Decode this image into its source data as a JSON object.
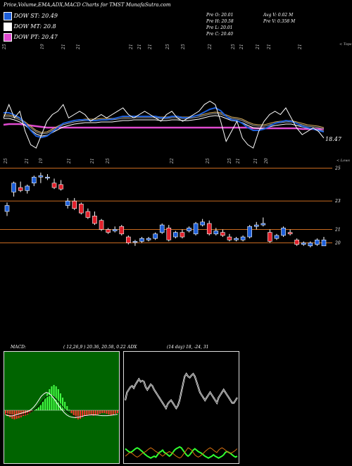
{
  "header": {
    "title": "Price,Volume,EMA,ADX,MACD Charts for TMST MunafaSutra.com"
  },
  "legend": [
    {
      "label": "DOW ST: 20.49",
      "color": "#1e5fd8"
    },
    {
      "label": "DOW MT: 20.8",
      "color": "#ffffff"
    },
    {
      "label": "DOW PT: 20.47",
      "color": "#e04ad0"
    }
  ],
  "stats": {
    "pre_o": "Pre   O: 20.01",
    "pre_h": "Pre   H: 20.58",
    "pre_l": "Pre   L: 20.01",
    "pre_c": "Pre   C: 20.40",
    "avg_v": "Avg V: 0.02   M",
    "pre_v": "Pre   V: 0.358 M"
  },
  "colors": {
    "bull": "#1e5fd8",
    "bear": "#e0202a",
    "ema_short": "#1e5fd8",
    "ema_mid": "#ffffff",
    "ema_long": "#e04ad0",
    "price_line": "#ffffff",
    "ma_yellow": "#d8b060",
    "ma_gray": "#a0a0a0",
    "level_line": "#c86a20",
    "macd_bg": "#006400",
    "adx_bg": "#000000"
  },
  "chart_data": {
    "type": "candlestick",
    "upper_top_label": "< Tops",
    "upper_value_label": "18.47",
    "lower_axis_label": "< Lows",
    "top_date_labels": [
      "25",
      "19",
      "21",
      "21",
      "21",
      "21",
      "21",
      "25",
      "25",
      "22",
      "25",
      "21",
      "21",
      "21",
      "21"
    ],
    "middle_date_labels": [
      "25",
      "21",
      "19",
      "21",
      "21",
      "25",
      "22",
      "25",
      "25",
      "21",
      "21",
      "20"
    ],
    "price_levels": [
      {
        "label": "25",
        "value": 25.2
      },
      {
        "label": "23",
        "value": 23.0
      },
      {
        "label": "21",
        "value": 21.1
      },
      {
        "label": "20",
        "value": 20.2
      }
    ],
    "price_ylim": [
      19.0,
      25.6
    ],
    "candles": [
      {
        "o": 22.3,
        "h": 22.9,
        "l": 22.0,
        "c": 22.7
      },
      {
        "o": 23.6,
        "h": 24.3,
        "l": 23.3,
        "c": 24.2
      },
      {
        "o": 23.9,
        "h": 24.3,
        "l": 23.6,
        "c": 23.7
      },
      {
        "o": 23.7,
        "h": 24.1,
        "l": 23.5,
        "c": 24.0
      },
      {
        "o": 24.2,
        "h": 24.7,
        "l": 24.0,
        "c": 24.6
      },
      {
        "o": 24.6,
        "h": 24.9,
        "l": 24.2,
        "c": 24.7
      },
      {
        "o": 24.6,
        "h": 24.8,
        "l": 24.4,
        "c": 24.6
      },
      {
        "o": 24.2,
        "h": 24.5,
        "l": 23.8,
        "c": 23.9
      },
      {
        "o": 24.1,
        "h": 24.4,
        "l": 23.7,
        "c": 23.8
      },
      {
        "o": 22.7,
        "h": 23.2,
        "l": 22.5,
        "c": 23.0
      },
      {
        "o": 23.0,
        "h": 23.2,
        "l": 22.4,
        "c": 22.5
      },
      {
        "o": 22.8,
        "h": 22.9,
        "l": 22.1,
        "c": 22.2
      },
      {
        "o": 22.3,
        "h": 22.5,
        "l": 21.8,
        "c": 21.9
      },
      {
        "o": 22.0,
        "h": 22.3,
        "l": 21.4,
        "c": 21.5
      },
      {
        "o": 21.7,
        "h": 21.8,
        "l": 21.0,
        "c": 21.1
      },
      {
        "o": 21.1,
        "h": 21.2,
        "l": 20.8,
        "c": 20.9
      },
      {
        "o": 21.0,
        "h": 21.3,
        "l": 20.9,
        "c": 21.1
      },
      {
        "o": 21.3,
        "h": 21.4,
        "l": 20.7,
        "c": 20.8
      },
      {
        "o": 20.6,
        "h": 20.7,
        "l": 20.1,
        "c": 20.2
      },
      {
        "o": 20.3,
        "h": 20.4,
        "l": 20.0,
        "c": 20.3
      },
      {
        "o": 20.3,
        "h": 20.6,
        "l": 20.2,
        "c": 20.5
      },
      {
        "o": 20.4,
        "h": 20.6,
        "l": 20.3,
        "c": 20.5
      },
      {
        "o": 20.5,
        "h": 20.9,
        "l": 20.4,
        "c": 20.8
      },
      {
        "o": 20.9,
        "h": 21.5,
        "l": 20.8,
        "c": 21.4
      },
      {
        "o": 21.2,
        "h": 21.4,
        "l": 20.3,
        "c": 20.4
      },
      {
        "o": 20.6,
        "h": 21.0,
        "l": 20.5,
        "c": 20.9
      },
      {
        "o": 20.9,
        "h": 21.1,
        "l": 20.5,
        "c": 20.6
      },
      {
        "o": 21.0,
        "h": 21.3,
        "l": 20.9,
        "c": 21.2
      },
      {
        "o": 20.8,
        "h": 21.6,
        "l": 20.7,
        "c": 21.5
      },
      {
        "o": 21.4,
        "h": 21.8,
        "l": 21.3,
        "c": 21.6
      },
      {
        "o": 21.5,
        "h": 21.7,
        "l": 20.7,
        "c": 20.8
      },
      {
        "o": 20.8,
        "h": 21.2,
        "l": 20.7,
        "c": 21.0
      },
      {
        "o": 20.9,
        "h": 21.1,
        "l": 20.6,
        "c": 20.7
      },
      {
        "o": 20.6,
        "h": 20.8,
        "l": 20.3,
        "c": 20.4
      },
      {
        "o": 20.4,
        "h": 20.6,
        "l": 20.3,
        "c": 20.5
      },
      {
        "o": 20.4,
        "h": 20.7,
        "l": 20.3,
        "c": 20.6
      },
      {
        "o": 20.6,
        "h": 21.4,
        "l": 20.5,
        "c": 21.3
      },
      {
        "o": 21.3,
        "h": 21.6,
        "l": 21.1,
        "c": 21.4
      },
      {
        "o": 21.4,
        "h": 21.9,
        "l": 21.3,
        "c": 21.5
      },
      {
        "o": 20.9,
        "h": 21.1,
        "l": 20.2,
        "c": 20.3
      },
      {
        "o": 20.5,
        "h": 20.8,
        "l": 20.4,
        "c": 20.7
      },
      {
        "o": 20.7,
        "h": 21.3,
        "l": 20.6,
        "c": 21.2
      },
      {
        "o": 20.9,
        "h": 21.1,
        "l": 20.7,
        "c": 20.8
      },
      {
        "o": 20.4,
        "h": 20.5,
        "l": 20.0,
        "c": 20.1
      },
      {
        "o": 20.1,
        "h": 20.3,
        "l": 20.0,
        "c": 20.2
      },
      {
        "o": 20.0,
        "h": 20.3,
        "l": 19.9,
        "c": 20.2
      },
      {
        "o": 20.1,
        "h": 20.5,
        "l": 20.0,
        "c": 20.4
      },
      {
        "o": 20.0,
        "h": 20.6,
        "l": 20.0,
        "c": 20.4
      }
    ],
    "upper_lines": {
      "price": [
        0.55,
        0.35,
        0.55,
        0.45,
        0.75,
        0.95,
        1.0,
        0.8,
        0.6,
        0.5,
        0.45,
        0.35,
        0.55,
        0.5,
        0.45,
        0.5,
        0.6,
        0.55,
        0.5,
        0.55,
        0.5,
        0.45,
        0.4,
        0.5,
        0.55,
        0.5,
        0.45,
        0.5,
        0.55,
        0.6,
        0.5,
        0.45,
        0.55,
        0.6,
        0.55,
        0.5,
        0.45,
        0.35,
        0.3,
        0.35,
        0.6,
        0.9,
        0.75,
        0.6,
        0.85,
        0.95,
        1.0,
        0.75,
        0.6,
        0.5,
        0.45,
        0.5,
        0.4,
        0.55,
        0.7,
        0.8,
        0.75,
        0.7,
        0.75,
        0.85
      ],
      "ema_short": [
        0.45,
        0.45,
        0.48,
        0.52,
        0.6,
        0.7,
        0.78,
        0.8,
        0.78,
        0.72,
        0.66,
        0.6,
        0.58,
        0.56,
        0.55,
        0.55,
        0.56,
        0.56,
        0.55,
        0.55,
        0.54,
        0.52,
        0.5,
        0.5,
        0.5,
        0.5,
        0.5,
        0.5,
        0.5,
        0.52,
        0.52,
        0.5,
        0.5,
        0.52,
        0.52,
        0.5,
        0.48,
        0.44,
        0.4,
        0.38,
        0.42,
        0.5,
        0.55,
        0.56,
        0.6,
        0.66,
        0.7,
        0.7,
        0.68,
        0.64,
        0.6,
        0.58,
        0.56,
        0.57,
        0.6,
        0.64,
        0.66,
        0.68,
        0.7,
        0.72
      ],
      "ema_mid": [
        0.5,
        0.5,
        0.52,
        0.55,
        0.6,
        0.66,
        0.72,
        0.75,
        0.74,
        0.7,
        0.66,
        0.62,
        0.6,
        0.58,
        0.57,
        0.56,
        0.56,
        0.56,
        0.55,
        0.55,
        0.55,
        0.54,
        0.53,
        0.53,
        0.52,
        0.52,
        0.52,
        0.52,
        0.52,
        0.53,
        0.53,
        0.52,
        0.52,
        0.53,
        0.53,
        0.52,
        0.51,
        0.49,
        0.47,
        0.46,
        0.47,
        0.5,
        0.53,
        0.54,
        0.56,
        0.6,
        0.63,
        0.64,
        0.64,
        0.62,
        0.6,
        0.59,
        0.58,
        0.58,
        0.6,
        0.62,
        0.64,
        0.65,
        0.66,
        0.68
      ],
      "ema_long": [
        0.62,
        0.61,
        0.61,
        0.61,
        0.62,
        0.63,
        0.64,
        0.65,
        0.66,
        0.66,
        0.66,
        0.66,
        0.66,
        0.66,
        0.66,
        0.66,
        0.66,
        0.66,
        0.66,
        0.66,
        0.66,
        0.66,
        0.66,
        0.66,
        0.66,
        0.66,
        0.66,
        0.66,
        0.66,
        0.66,
        0.66,
        0.66,
        0.66,
        0.66,
        0.66,
        0.66,
        0.66,
        0.66,
        0.66,
        0.66,
        0.66,
        0.66,
        0.66,
        0.66,
        0.66,
        0.66,
        0.67,
        0.67,
        0.67,
        0.67,
        0.67,
        0.67,
        0.67,
        0.67,
        0.67,
        0.68,
        0.68,
        0.68,
        0.68,
        0.68
      ]
    },
    "macd": {
      "label": "MACD:",
      "params": "( 12,26,9 ) 20.36,  20.58,  0.22",
      "histogram": [
        -0.15,
        -0.2,
        -0.25,
        -0.3,
        -0.32,
        -0.3,
        -0.28,
        -0.25,
        -0.2,
        -0.18,
        -0.15,
        -0.1,
        -0.05,
        0.02,
        0.05,
        0.1,
        0.18,
        0.3,
        0.45,
        0.6,
        0.75,
        0.85,
        0.9,
        0.85,
        0.75,
        0.6,
        0.45,
        0.3,
        0.15,
        0.02,
        -0.1,
        -0.2,
        -0.28,
        -0.32,
        -0.3,
        -0.25,
        -0.2,
        -0.18,
        -0.15,
        -0.18,
        -0.2,
        -0.18,
        -0.15,
        -0.12,
        -0.1,
        -0.1,
        -0.12,
        -0.15,
        -0.18,
        -0.15,
        -0.12,
        -0.1
      ],
      "macd_line": [
        -0.25,
        -0.3,
        -0.32,
        -0.3,
        -0.25,
        -0.2,
        -0.15,
        -0.1,
        -0.05,
        0.0,
        0.1,
        0.25,
        0.45,
        0.7,
        0.95,
        1.1,
        1.2,
        1.15,
        1.0,
        0.8,
        0.55,
        0.3,
        0.1,
        -0.1,
        -0.25,
        -0.35,
        -0.4,
        -0.42,
        -0.4,
        -0.38,
        -0.35,
        -0.3,
        -0.28,
        -0.26,
        -0.25,
        -0.25,
        -0.26,
        -0.28,
        -0.3,
        -0.3,
        -0.3,
        -0.28,
        -0.26,
        -0.24,
        -0.22
      ],
      "signal_line": [
        -0.15,
        -0.2,
        -0.25,
        -0.27,
        -0.28,
        -0.27,
        -0.25,
        -0.22,
        -0.18,
        -0.12,
        -0.05,
        0.05,
        0.18,
        0.35,
        0.55,
        0.75,
        0.9,
        1.0,
        1.0,
        0.9,
        0.75,
        0.55,
        0.35,
        0.15,
        -0.02,
        -0.15,
        -0.25,
        -0.32,
        -0.36,
        -0.37,
        -0.36,
        -0.34,
        -0.31,
        -0.29,
        -0.27,
        -0.26,
        -0.26,
        -0.27,
        -0.28,
        -0.29,
        -0.29,
        -0.28,
        -0.27,
        -0.25,
        -0.23
      ]
    },
    "adx": {
      "label": "ADX",
      "params": "(14 day) 18,  -24,  31",
      "adx_line": [
        0.35,
        0.5,
        0.55,
        0.6,
        0.62,
        0.58,
        0.65,
        0.7,
        0.75,
        0.7,
        0.72,
        0.7,
        0.6,
        0.55,
        0.6,
        0.65,
        0.62,
        0.55,
        0.5,
        0.45,
        0.4,
        0.35,
        0.3,
        0.25,
        0.2,
        0.28,
        0.32,
        0.35,
        0.3,
        0.25,
        0.2,
        0.25,
        0.35,
        0.5,
        0.65,
        0.8,
        0.85,
        0.8,
        0.78,
        0.82,
        0.85,
        0.8,
        0.7,
        0.6,
        0.5,
        0.45,
        0.4,
        0.35,
        0.4,
        0.45,
        0.5,
        0.45,
        0.4,
        0.35,
        0.3,
        0.4,
        0.45,
        0.5,
        0.55,
        0.5,
        0.45,
        0.4,
        0.35,
        0.3,
        0.3,
        0.35,
        0.4
      ],
      "plus_di": [
        0.28,
        0.25,
        0.22,
        0.2,
        0.22,
        0.25,
        0.28,
        0.3,
        0.28,
        0.25,
        0.22,
        0.18,
        0.15,
        0.12,
        0.1,
        0.08,
        0.1,
        0.12,
        0.1,
        0.15,
        0.2,
        0.22,
        0.25,
        0.2,
        0.18,
        0.15,
        0.12,
        0.15,
        0.2,
        0.25,
        0.28,
        0.3,
        0.32,
        0.3,
        0.25,
        0.2,
        0.15,
        0.12,
        0.15,
        0.2,
        0.25,
        0.28,
        0.25,
        0.22,
        0.2,
        0.18,
        0.15,
        0.12,
        0.1,
        0.08,
        0.1,
        0.12,
        0.15,
        0.12,
        0.1,
        0.08,
        0.1,
        0.12,
        0.15,
        0.2,
        0.22,
        0.2,
        0.18,
        0.15,
        0.12,
        0.1,
        0.12
      ],
      "minus_di": [
        0.12,
        0.15,
        0.18,
        0.2,
        0.18,
        0.15,
        0.12,
        0.1,
        0.12,
        0.15,
        0.18,
        0.2,
        0.22,
        0.25,
        0.28,
        0.3,
        0.28,
        0.25,
        0.22,
        0.2,
        0.18,
        0.15,
        0.12,
        0.15,
        0.18,
        0.2,
        0.22,
        0.2,
        0.18,
        0.15,
        0.12,
        0.1,
        0.08,
        0.1,
        0.15,
        0.2,
        0.25,
        0.3,
        0.28,
        0.25,
        0.2,
        0.15,
        0.12,
        0.1,
        0.12,
        0.15,
        0.18,
        0.22,
        0.25,
        0.28,
        0.3,
        0.28,
        0.25,
        0.22,
        0.2,
        0.25,
        0.28,
        0.3,
        0.28,
        0.25,
        0.22,
        0.2,
        0.18,
        0.2,
        0.22,
        0.25,
        0.28
      ]
    }
  }
}
